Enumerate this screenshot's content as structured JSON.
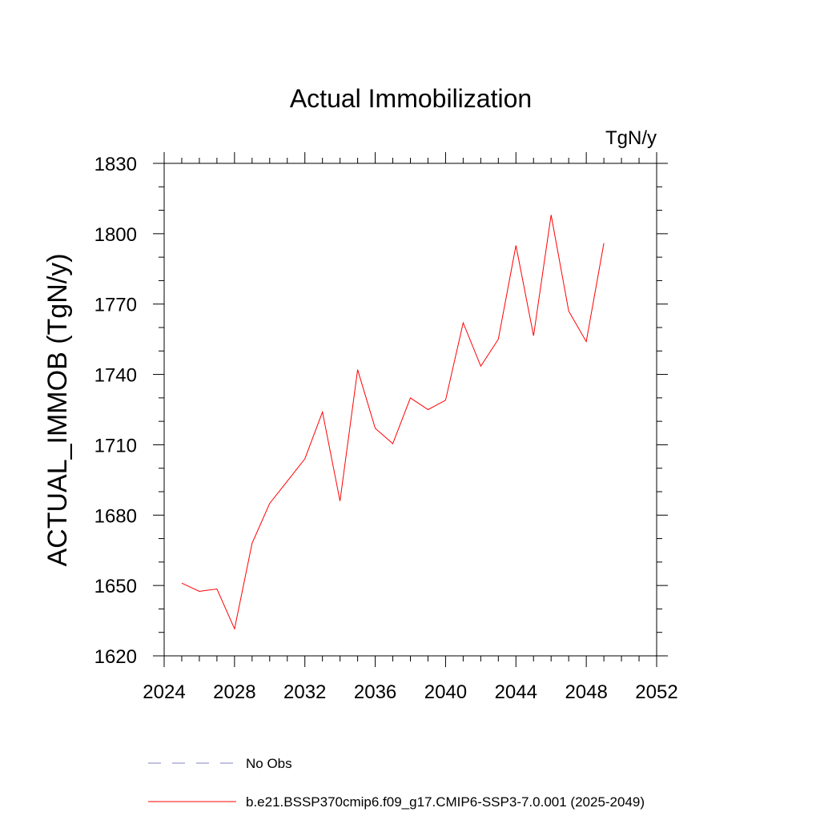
{
  "chart_data": {
    "type": "line",
    "title": "Actual Immobilization",
    "units_label": "TgN/y",
    "ylabel": "ACTUAL_IMMOB  (TgN/y)",
    "xlabel": "",
    "xlim": [
      2024,
      2052
    ],
    "ylim": [
      1620,
      1830
    ],
    "x_ticks": [
      2024,
      2028,
      2032,
      2036,
      2040,
      2044,
      2048,
      2052
    ],
    "y_ticks": [
      1620,
      1650,
      1680,
      1710,
      1740,
      1770,
      1800,
      1830
    ],
    "grid": false,
    "legend_position": "bottom",
    "x": [
      2025,
      2026,
      2027,
      2028,
      2029,
      2030,
      2031,
      2032,
      2033,
      2034,
      2035,
      2036,
      2037,
      2038,
      2039,
      2040,
      2041,
      2042,
      2043,
      2044,
      2045,
      2046,
      2047,
      2048,
      2049
    ],
    "series": [
      {
        "name": "b.e21.BSSP370cmip6.f09_g17.CMIP6-SSP3-7.0.001 (2025-2049)",
        "color": "#ff0000",
        "values": [
          1651,
          1647.5,
          1648.5,
          1631.5,
          1668,
          1685,
          1694.5,
          1704,
          1724,
          1686,
          1742,
          1717,
          1710.5,
          1730,
          1725,
          1729,
          1762,
          1743.5,
          1755,
          1795,
          1756.5,
          1808,
          1767,
          1754,
          1796
        ]
      }
    ],
    "legend": [
      {
        "label": "No Obs",
        "color": "#8080c0",
        "style": "dashed"
      },
      {
        "label": "b.e21.BSSP370cmip6.f09_g17.CMIP6-SSP3-7.0.001 (2025-2049)",
        "color": "#ff0000",
        "style": "solid"
      }
    ]
  }
}
